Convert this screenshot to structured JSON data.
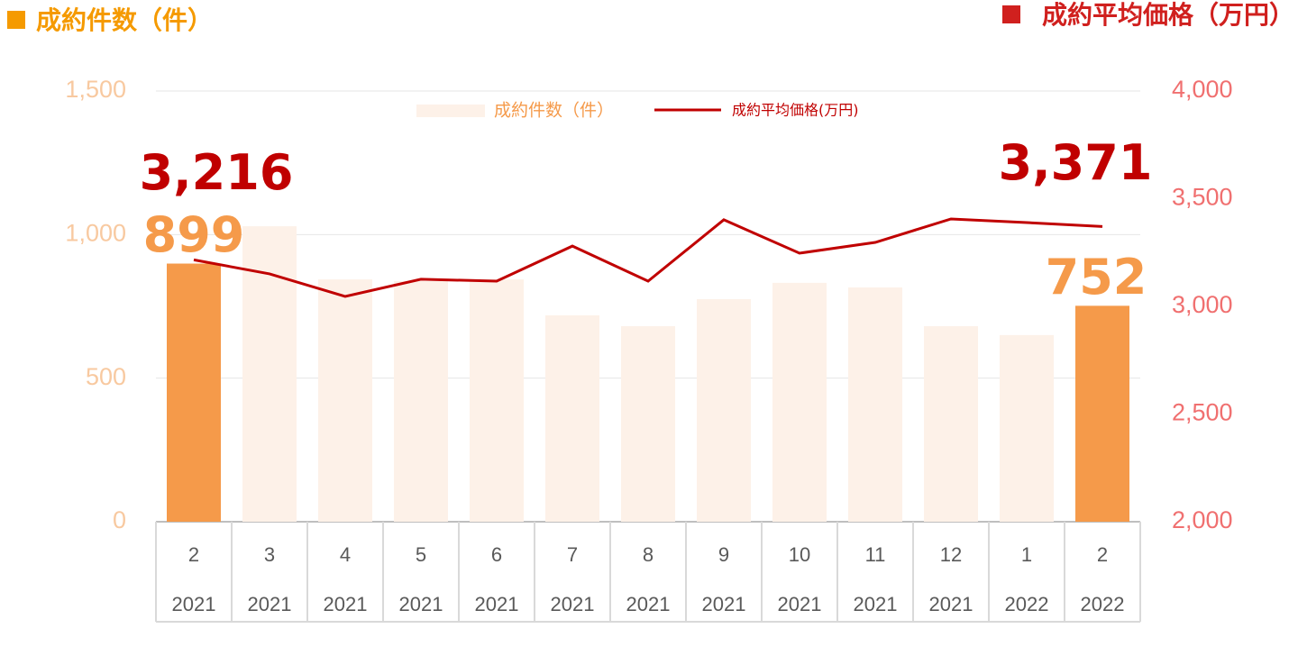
{
  "chart_data": {
    "type": "combo",
    "y_label": "成約件数（件）",
    "y2_label": "成約平均価格（万円）",
    "categories": [
      "2",
      "3",
      "4",
      "5",
      "6",
      "7",
      "8",
      "9",
      "10",
      "11",
      "12",
      "1",
      "2"
    ],
    "years": [
      "2021",
      "2021",
      "2021",
      "2021",
      "2021",
      "2021",
      "2021",
      "2021",
      "2021",
      "2021",
      "2021",
      "2022",
      "2022"
    ],
    "series": [
      {
        "name": "成約件数（件）",
        "type": "bar",
        "color": "#fdf1e8",
        "label_color": "#f59a4a",
        "colors": [
          "#f59a4a",
          "#fdf1e8",
          "#fdf1e8",
          "#fdf1e8",
          "#fdf1e8",
          "#fdf1e8",
          "#fdf1e8",
          "#fdf1e8",
          "#fdf1e8",
          "#fdf1e8",
          "#fdf1e8",
          "#fdf1e8",
          "#f59a4a"
        ],
        "values": [
          899,
          1029,
          844,
          838,
          844,
          719,
          681,
          775,
          832,
          816,
          681,
          650,
          752
        ],
        "value_labels": [
          "899",
          null,
          null,
          null,
          null,
          null,
          null,
          null,
          null,
          null,
          null,
          null,
          "752"
        ]
      },
      {
        "name": "成約平均価格(万円)",
        "type": "line",
        "axis": "y2",
        "color": "#c00000",
        "values": [
          3216,
          3151,
          3046,
          3126,
          3117,
          3280,
          3117,
          3402,
          3247,
          3297,
          3406,
          3389,
          3371
        ],
        "value_labels": [
          "3,216",
          null,
          null,
          null,
          null,
          null,
          null,
          null,
          null,
          null,
          null,
          null,
          "3,371"
        ]
      }
    ],
    "ylim": [
      0,
      1500
    ],
    "yticks": [
      0,
      500,
      {
        "value": 1000,
        "label": "1,000"
      },
      {
        "value": 1500,
        "label": "1,500"
      }
    ],
    "y2lim": [
      2000,
      4000
    ],
    "y2ticks": [
      {
        "value": 2000,
        "label": "2,000"
      },
      {
        "value": 2500,
        "label": "2,500"
      },
      {
        "value": 3000,
        "label": "3,000"
      },
      {
        "value": 3500,
        "label": "3,500"
      },
      {
        "value": 4000,
        "label": "4,000"
      }
    ],
    "grid": true
  }
}
